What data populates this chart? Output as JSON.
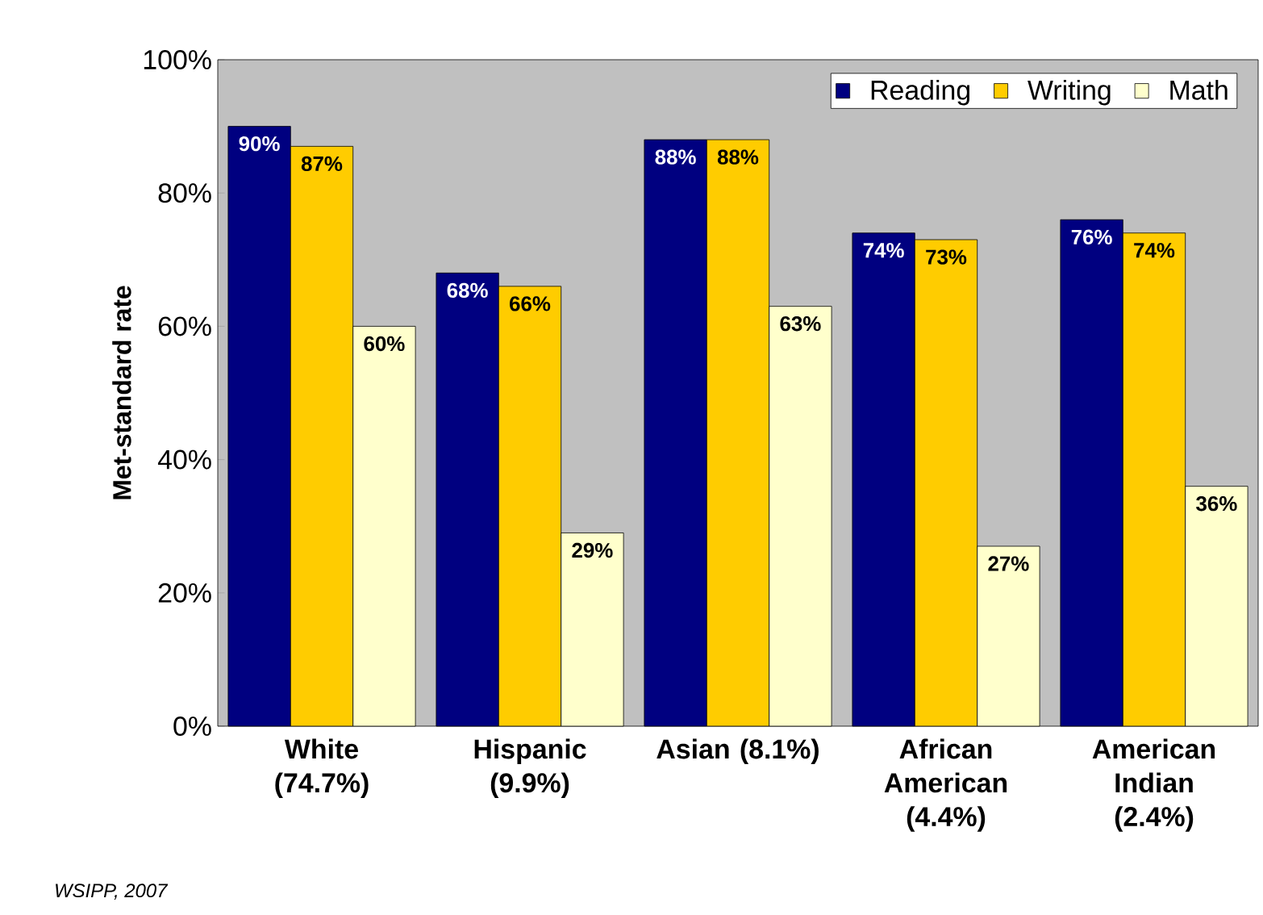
{
  "chart_data": {
    "type": "bar",
    "ylabel": "Met-standard rate",
    "categories": [
      "White (74.7%)",
      "Hispanic (9.9%)",
      "Asian (8.1%)",
      "African American (4.4%)",
      "American Indian (2.4%)"
    ],
    "series": [
      {
        "name": "Reading",
        "color": "#000080",
        "values": [
          90,
          68,
          88,
          74,
          76
        ],
        "value_labels": [
          "90%",
          "68%",
          "88%",
          "74%",
          "76%"
        ]
      },
      {
        "name": "Writing",
        "color": "#ffcc00",
        "values": [
          87,
          66,
          88,
          73,
          74
        ],
        "value_labels": [
          "87%",
          "66%",
          "88%",
          "73%",
          "74%"
        ]
      },
      {
        "name": "Math",
        "color": "#ffffcc",
        "values": [
          60,
          29,
          63,
          27,
          36
        ],
        "value_labels": [
          "60%",
          "29%",
          "63%",
          "27%",
          "36%"
        ]
      }
    ],
    "ylim": [
      0,
      100
    ],
    "yticks": [
      {
        "value": 0,
        "label": "0%"
      },
      {
        "value": 20,
        "label": "20%"
      },
      {
        "value": 40,
        "label": "40%"
      },
      {
        "value": 60,
        "label": "60%"
      },
      {
        "value": 80,
        "label": "80%"
      },
      {
        "value": 100,
        "label": "100%"
      }
    ],
    "legend": "top right",
    "grid": false,
    "annotations": [
      "WSIPP, 2007"
    ]
  }
}
